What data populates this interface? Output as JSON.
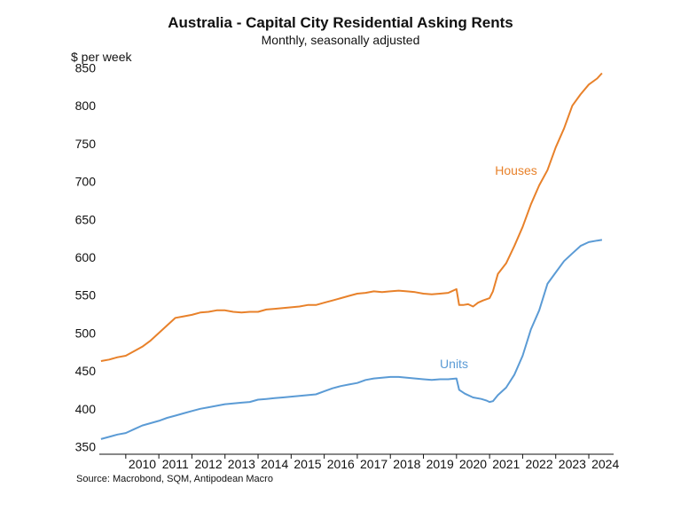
{
  "chart_data": {
    "type": "line",
    "title": "Australia - Capital City Residential Asking Rents",
    "subtitle": "Monthly, seasonally adjusted",
    "ylabel": "$ per week",
    "xlabel": "",
    "source": "Source: Macrobond, SQM, Antipodean Macro",
    "xlim": [
      2009.2,
      2024.75
    ],
    "ylim": [
      340,
      860
    ],
    "yticks": [
      350,
      400,
      450,
      500,
      550,
      600,
      650,
      700,
      750,
      800,
      850
    ],
    "xticks": [
      "2010",
      "2011",
      "2012",
      "2013",
      "2014",
      "2015",
      "2016",
      "2017",
      "2018",
      "2019",
      "2020",
      "2021",
      "2022",
      "2023",
      "2024"
    ],
    "grid": false,
    "legend": "none",
    "series": [
      {
        "name": "Houses",
        "color": "#e8812a",
        "x": [
          2009.25,
          2009.5,
          2009.75,
          2010.0,
          2010.25,
          2010.5,
          2010.75,
          2011.0,
          2011.25,
          2011.5,
          2011.75,
          2012.0,
          2012.25,
          2012.5,
          2012.75,
          2013.0,
          2013.25,
          2013.5,
          2013.75,
          2014.0,
          2014.25,
          2014.5,
          2014.75,
          2015.0,
          2015.25,
          2015.5,
          2015.75,
          2016.0,
          2016.25,
          2016.5,
          2016.75,
          2017.0,
          2017.25,
          2017.5,
          2017.75,
          2018.0,
          2018.25,
          2018.5,
          2018.75,
          2019.0,
          2019.25,
          2019.5,
          2019.75,
          2020.0,
          2020.08,
          2020.2,
          2020.35,
          2020.5,
          2020.65,
          2020.8,
          2021.0,
          2021.1,
          2021.25,
          2021.5,
          2021.75,
          2022.0,
          2022.25,
          2022.5,
          2022.75,
          2023.0,
          2023.25,
          2023.5,
          2023.75,
          2024.0,
          2024.25,
          2024.4
        ],
        "values": [
          463,
          465,
          468,
          470,
          476,
          482,
          490,
          500,
          510,
          520,
          522,
          524,
          527,
          528,
          530,
          530,
          528,
          527,
          528,
          528,
          531,
          532,
          533,
          534,
          535,
          537,
          537,
          540,
          543,
          546,
          549,
          552,
          553,
          555,
          554,
          555,
          556,
          555,
          554,
          552,
          551,
          552,
          553,
          558,
          537,
          537,
          538,
          535,
          540,
          543,
          546,
          555,
          578,
          592,
          615,
          640,
          670,
          695,
          715,
          745,
          770,
          800,
          815,
          828,
          836,
          843
        ]
      },
      {
        "name": "Units",
        "color": "#5b9bd5",
        "x": [
          2009.25,
          2009.5,
          2009.75,
          2010.0,
          2010.25,
          2010.5,
          2010.75,
          2011.0,
          2011.25,
          2011.5,
          2011.75,
          2012.0,
          2012.25,
          2012.5,
          2012.75,
          2013.0,
          2013.25,
          2013.5,
          2013.75,
          2014.0,
          2014.25,
          2014.5,
          2014.75,
          2015.0,
          2015.25,
          2015.5,
          2015.75,
          2016.0,
          2016.25,
          2016.5,
          2016.75,
          2017.0,
          2017.25,
          2017.5,
          2017.75,
          2018.0,
          2018.25,
          2018.5,
          2018.75,
          2019.0,
          2019.25,
          2019.5,
          2019.75,
          2020.0,
          2020.08,
          2020.25,
          2020.5,
          2020.75,
          2020.9,
          2021.0,
          2021.1,
          2021.25,
          2021.5,
          2021.75,
          2022.0,
          2022.25,
          2022.5,
          2022.75,
          2023.0,
          2023.25,
          2023.5,
          2023.75,
          2024.0,
          2024.25,
          2024.4
        ],
        "values": [
          360,
          363,
          366,
          368,
          373,
          378,
          381,
          384,
          388,
          391,
          394,
          397,
          400,
          402,
          404,
          406,
          407,
          408,
          409,
          412,
          413,
          414,
          415,
          416,
          417,
          418,
          419,
          423,
          427,
          430,
          432,
          434,
          438,
          440,
          441,
          442,
          442,
          441,
          440,
          439,
          438,
          439,
          439,
          440,
          425,
          420,
          415,
          413,
          411,
          409,
          410,
          418,
          428,
          445,
          470,
          505,
          530,
          565,
          580,
          595,
          605,
          615,
          620,
          622,
          623
        ]
      }
    ],
    "annotations": [
      {
        "text": "Houses",
        "series": "Houses"
      },
      {
        "text": "Units",
        "series": "Units"
      }
    ]
  }
}
